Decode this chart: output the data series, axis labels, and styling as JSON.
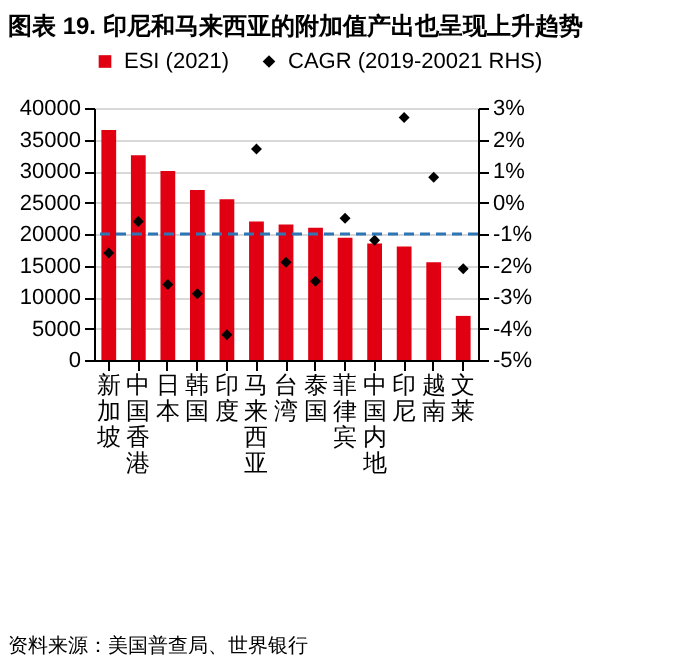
{
  "chart_data": {
    "type": "bar",
    "title": "图表 19. 印尼和马来西亚的附加值产出也呈现上升趋势",
    "categories": [
      "新加坡",
      "中国香港",
      "日本",
      "韩国",
      "印度",
      "马来西亚",
      "台湾",
      "泰国",
      "菲律宾",
      "中国内地",
      "印尼",
      "越南",
      "文莱"
    ],
    "series": [
      {
        "name": "ESI (2021)",
        "color": "#e00012",
        "values": [
          36500,
          32500,
          30000,
          27000,
          25500,
          22000,
          21500,
          21000,
          19400,
          18500,
          18000,
          15500,
          7000
        ]
      },
      {
        "name": "CAGR (2019-20021 RHS)",
        "type": "scatter",
        "axis": "y2",
        "color": "#000000",
        "values": [
          -1.6,
          -0.6,
          -2.6,
          -2.9,
          -4.2,
          1.7,
          -1.9,
          -2.5,
          -0.5,
          -1.2,
          2.7,
          0.8,
          -2.1
        ]
      }
    ],
    "ylim": [
      0,
      40000
    ],
    "yticks": [
      0,
      5000,
      10000,
      15000,
      20000,
      25000,
      30000,
      35000,
      40000
    ],
    "y2lim": [
      -5,
      3
    ],
    "y2ticks": [
      {
        "value": -5,
        "label": "-5%"
      },
      {
        "value": -4,
        "label": "-4%"
      },
      {
        "value": -3,
        "label": "-3%"
      },
      {
        "value": -2,
        "label": "-2%"
      },
      {
        "value": -1,
        "label": "-1%"
      },
      {
        "value": 0,
        "label": "0%"
      },
      {
        "value": 1,
        "label": "1%"
      },
      {
        "value": 2,
        "label": "2%"
      },
      {
        "value": 3,
        "label": "3%"
      }
    ],
    "ref_lines": [
      {
        "axis": "y2",
        "value": -1,
        "color": "#2e75b6",
        "line_style": "dashed"
      }
    ],
    "grid": "y",
    "legend": "top",
    "marker": "diamond",
    "annotations": [
      "资料来源：美国普查局、世界银行"
    ]
  }
}
